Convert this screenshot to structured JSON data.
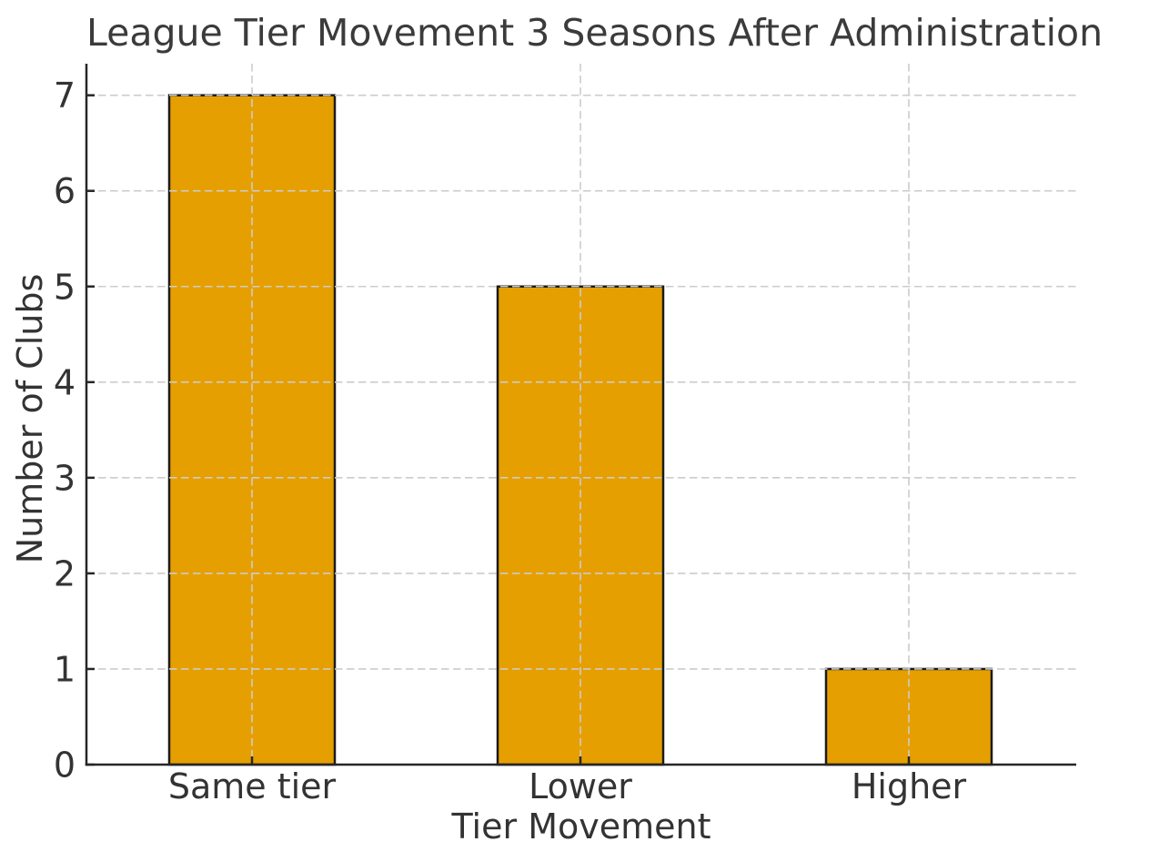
{
  "chart_data": {
    "type": "bar",
    "title": "League Tier Movement 3 Seasons After Administration",
    "xlabel": "Tier Movement",
    "ylabel": "Number of Clubs",
    "categories": [
      "Same tier",
      "Lower",
      "Higher"
    ],
    "values": [
      7,
      5,
      1
    ],
    "yticks": [
      0,
      1,
      2,
      3,
      4,
      5,
      6,
      7
    ],
    "ylim": [
      0,
      7.33
    ],
    "xlim": [
      -0.5,
      2.5
    ],
    "grid": "dashed, horizontal and vertical, drawn over bars",
    "legend": "none",
    "spines": [
      "left",
      "bottom"
    ],
    "tick_direction": "in",
    "colors": {
      "bar_fill": "#E69F00",
      "bar_edge": "#1a1a1a",
      "grid": "#cccccc",
      "axis": "#262626",
      "text": "#333333",
      "title_text": "#3b3b3b",
      "background": "#ffffff"
    }
  }
}
